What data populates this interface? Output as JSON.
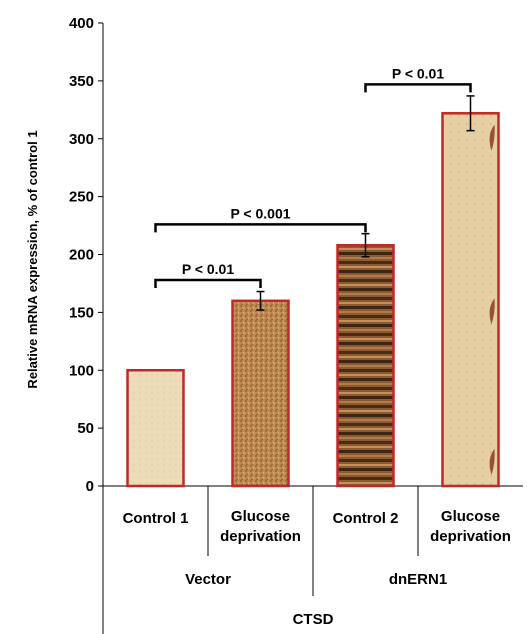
{
  "chart_data": {
    "type": "bar",
    "ylabel": "Relative mRNA expression, % of control 1",
    "ylim": [
      0,
      400
    ],
    "yticks": [
      0,
      50,
      100,
      150,
      200,
      250,
      300,
      350,
      400
    ],
    "categories": [
      "Control 1",
      "Glucose deprivation",
      "Control 2",
      "Glucose deprivation"
    ],
    "category_lines": [
      [
        "Control 1"
      ],
      [
        "Glucose",
        "deprivation"
      ],
      [
        "Control 2"
      ],
      [
        "Glucose",
        "deprivation"
      ]
    ],
    "values": [
      100,
      160,
      208,
      322
    ],
    "errors": [
      0,
      8,
      10,
      15
    ],
    "groups": [
      {
        "label": "Vector",
        "categories": [
          0,
          1
        ]
      },
      {
        "label": "dnERN1",
        "categories": [
          2,
          3
        ]
      }
    ],
    "outer_label": "CTSD",
    "significance": [
      {
        "from": 0,
        "to": 1,
        "y": 178,
        "label": "P < 0.01"
      },
      {
        "from": 0,
        "to": 2,
        "y": 226,
        "label": "P < 0.001"
      },
      {
        "from": 2,
        "to": 3,
        "y": 347,
        "label": "P < 0.01"
      }
    ],
    "bar_fills": [
      "#ecdcb6",
      "#b8844c",
      "#7a4a28",
      "#e2c89a"
    ],
    "bar_border_color": "#c0282a"
  }
}
